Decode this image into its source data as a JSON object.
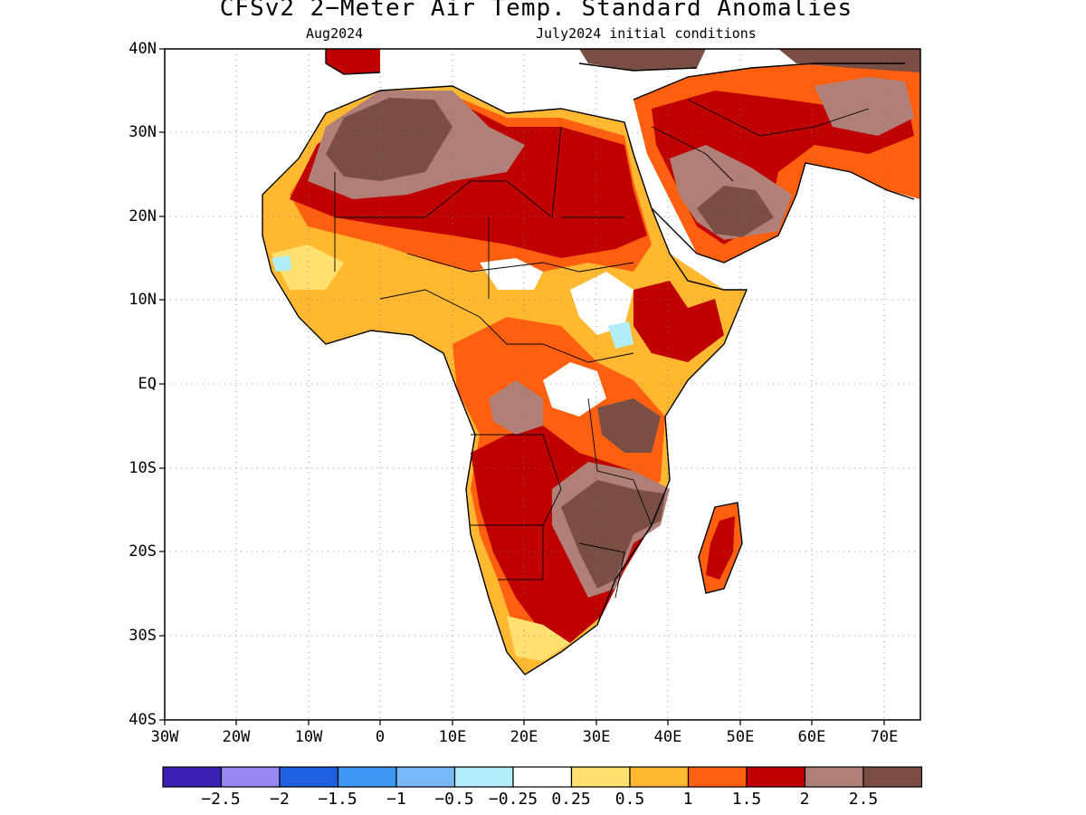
{
  "title": "CFSv2 2−Meter Air Temp. Standard Anomalies",
  "subtitle_left": "Aug2024",
  "subtitle_right": "July2024 initial conditions",
  "lat_labels": [
    "40N",
    "30N",
    "20N",
    "10N",
    "EQ",
    "10S",
    "20S",
    "30S",
    "40S"
  ],
  "lon_labels": [
    "30W",
    "20W",
    "10W",
    "0",
    "10E",
    "20E",
    "30E",
    "40E",
    "50E",
    "60E",
    "70E"
  ],
  "colorbar": {
    "colors": [
      "#3a1fb0",
      "#9a86f0",
      "#2060e0",
      "#3c96f2",
      "#78b8f6",
      "#b2eefa",
      "#ffffff",
      "#ffe070",
      "#ffb830",
      "#ff6010",
      "#c00000",
      "#b08078",
      "#7a4e44"
    ],
    "labels": [
      "−2.5",
      "−2",
      "−1.5",
      "−1",
      "−0.5",
      "−0.25",
      "0.25",
      "0.5",
      "1",
      "1.5",
      "2",
      "2.5"
    ]
  },
  "anomaly_regions": [
    {
      "name": "north-africa",
      "level": "2.5+",
      "color": "#7a4e44"
    },
    {
      "name": "sahel-band",
      "level": "2",
      "color": "#c00000"
    },
    {
      "name": "west-africa",
      "level": "1",
      "color": "#ffb830"
    },
    {
      "name": "central-africa",
      "level": "1.5",
      "color": "#ff6010"
    },
    {
      "name": "east-africa-cool",
      "level": "-0.25",
      "color": "#b2eefa"
    },
    {
      "name": "southern-africa",
      "level": "2.5+",
      "color": "#7a4e44"
    },
    {
      "name": "arabian-peninsula",
      "level": "2.5+",
      "color": "#7a4e44"
    }
  ]
}
